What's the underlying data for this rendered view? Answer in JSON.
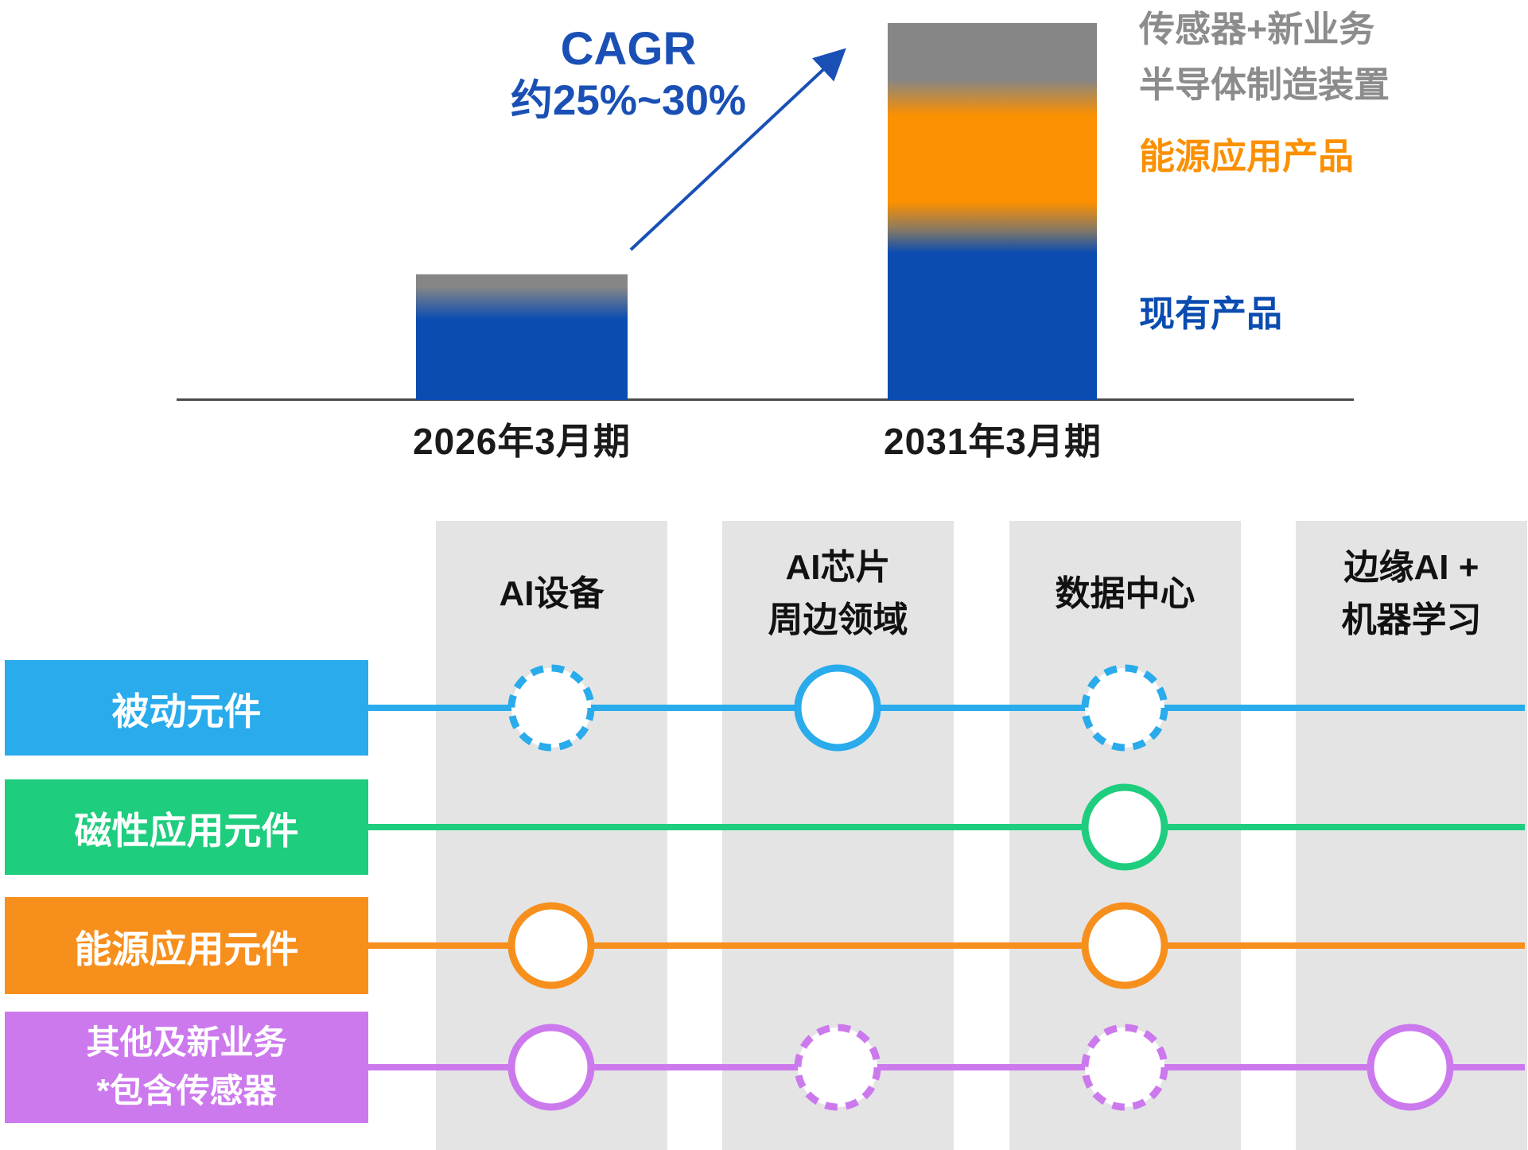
{
  "colors": {
    "bar_blue": "#0a4cb0",
    "bar_orange": "#fb9000",
    "bar_gray": "#868686",
    "cagr_blue": "#1a50b5",
    "legend_gray": "#8c8c8c",
    "band_gray": "#e4e4e4",
    "row_blue": "#29abec",
    "row_green": "#1ecd7d",
    "row_orange": "#f78f1d",
    "row_purple": "#cc79ee",
    "axis_gray": "#4a4a4a"
  },
  "top_chart": {
    "cagr_line1": "CAGR",
    "cagr_line2": "约25%~30%",
    "bars": [
      {
        "label": "2026年3月期"
      },
      {
        "label": "2031年3月期"
      }
    ],
    "legend": {
      "sensor_new": "传感器+新业务\n半导体制造装置",
      "energy": "能源应用产品",
      "existing": "现有产品"
    }
  },
  "chart_data": [
    {
      "type": "bar",
      "subtype": "stacked",
      "categories": [
        "2026年3月期",
        "2031年3月期"
      ],
      "series": [
        {
          "name": "现有产品",
          "color": "#0a4cb0",
          "values": [
            118,
            219
          ]
        },
        {
          "name": "能源应用产品",
          "color": "#fb9000",
          "values": [
            0,
            140
          ]
        },
        {
          "name": "传感器+新业务 半导体制造装置",
          "color": "#868686",
          "values": [
            40,
            115
          ]
        }
      ],
      "value_note": "no numeric axis shown; values are relative bar-segment heights (px)",
      "annotation": "CAGR 约25%~30%",
      "axis": "hidden baseline only",
      "legend_position": "right"
    },
    {
      "type": "table",
      "columns": [
        "AI设备",
        "AI芯片 周边领域",
        "数据中心",
        "边缘AI + 机器学习"
      ],
      "rows": [
        {
          "name": "被动元件",
          "cells": [
            "dashed",
            "solid",
            "dashed",
            "none"
          ]
        },
        {
          "name": "磁性应用元件",
          "cells": [
            "none",
            "none",
            "solid",
            "none"
          ]
        },
        {
          "name": "能源应用元件",
          "cells": [
            "solid",
            "none",
            "solid",
            "none"
          ]
        },
        {
          "name": "其他及新业务 *包含传感器",
          "cells": [
            "solid",
            "dashed",
            "dashed",
            "solid"
          ]
        }
      ],
      "cell_note": "solid = solid-outline circle marker, dashed = dashed-outline circle marker"
    }
  ],
  "matrix": {
    "columns": [
      {
        "label": "AI设备"
      },
      {
        "label": "AI芯片\n周边领域"
      },
      {
        "label": "数据中心"
      },
      {
        "label": "边缘AI +\n机器学习"
      }
    ],
    "rows": [
      {
        "label": "被动元件",
        "color": "#29abec",
        "cells": [
          "dashed",
          "solid",
          "dashed",
          null
        ]
      },
      {
        "label": "磁性应用元件",
        "color": "#1ecd7d",
        "cells": [
          null,
          null,
          "solid",
          null
        ]
      },
      {
        "label": "能源应用元件",
        "color": "#f78f1d",
        "cells": [
          "solid",
          null,
          "solid",
          null
        ]
      },
      {
        "label": "其他及新业务\n*包含传感器",
        "color": "#cc79ee",
        "cells": [
          "solid",
          "dashed",
          "dashed",
          "solid"
        ]
      }
    ]
  }
}
